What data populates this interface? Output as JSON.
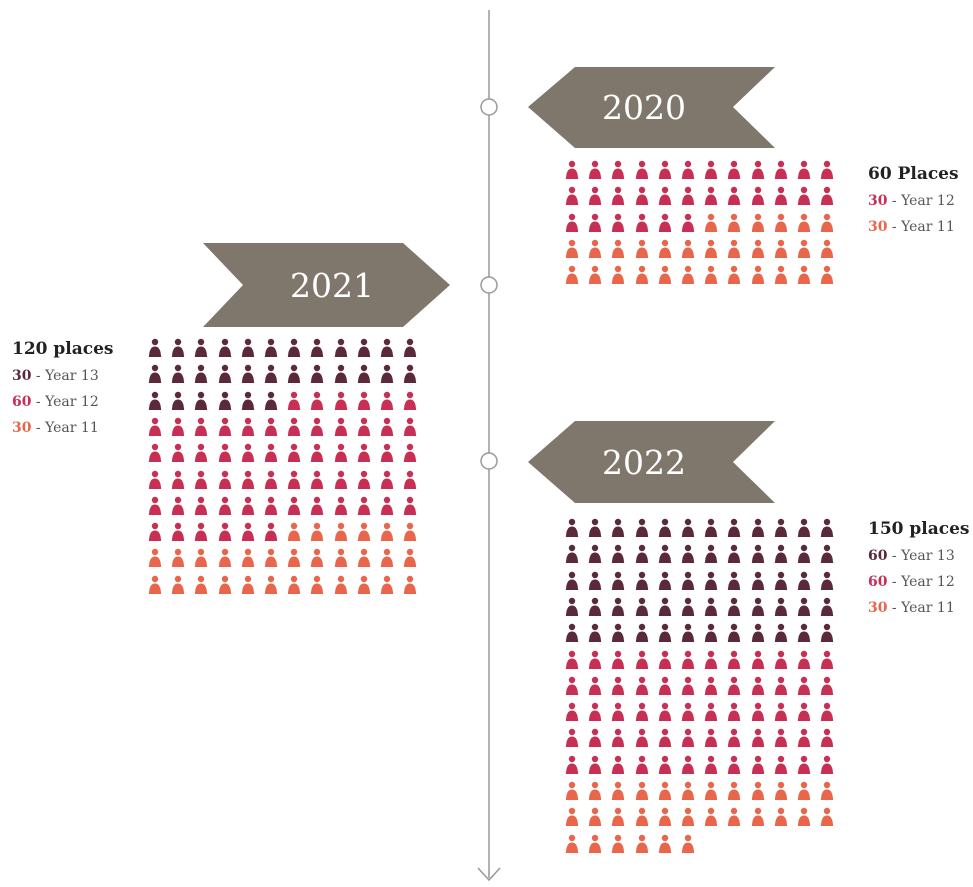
{
  "colors": {
    "line": "#999999",
    "banner": "#7f766c",
    "year13": "#5a2a3c",
    "year12": "#c72f55",
    "year11": "#e8674c",
    "node_fill": "#ffffff"
  },
  "icons": {
    "person": "person-icon",
    "node": "timeline-node-icon",
    "arrow": "arrow-down-icon"
  },
  "entries": [
    {
      "year": "2020",
      "total_label": "60 Places",
      "columns": 12,
      "segments": [
        {
          "count": 30,
          "label": "Year 12",
          "color_key": "year12"
        },
        {
          "count": 30,
          "label": "Year 11",
          "color_key": "year11"
        }
      ]
    },
    {
      "year": "2021",
      "total_label": "120 places",
      "columns": 12,
      "segments": [
        {
          "count": 30,
          "label": "Year 13",
          "color_key": "year13"
        },
        {
          "count": 60,
          "label": "Year 12",
          "color_key": "year12"
        },
        {
          "count": 30,
          "label": "Year 11",
          "color_key": "year11"
        }
      ]
    },
    {
      "year": "2022",
      "total_label": "150 places",
      "columns": 12,
      "segments": [
        {
          "count": 60,
          "label": "Year 13",
          "color_key": "year13"
        },
        {
          "count": 60,
          "label": "Year 12",
          "color_key": "year12"
        },
        {
          "count": 30,
          "label": "Year 11",
          "color_key": "year11"
        }
      ]
    }
  ]
}
